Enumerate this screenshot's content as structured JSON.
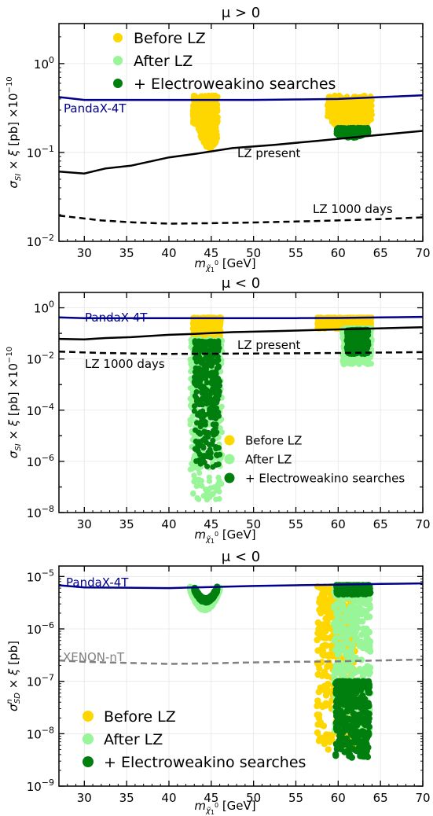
{
  "chart_data": [
    {
      "type": "scatter",
      "title": "μ > 0",
      "xlabel": "m_χ̃₁⁰ [GeV]",
      "ylabel": "σ_SI × ξ [pb] ×10⁻¹⁰",
      "xlim": [
        27,
        70
      ],
      "ylim_log10": [
        -2,
        0.45
      ],
      "log_y": true,
      "grid": true,
      "x_ticks": [
        "30",
        "35",
        "40",
        "45",
        "50",
        "55",
        "60",
        "65",
        "70"
      ],
      "y_ticks": [
        "10⁻²",
        "10⁻¹",
        "10⁰"
      ],
      "legend_position": "top-left",
      "legend": [
        "Before LZ",
        "After LZ",
        "+ Electroweakino searches"
      ],
      "colors": {
        "before": "#FFD700",
        "after": "#98F598",
        "ew": "#007F0E",
        "panda": "#00008B",
        "lz": "#000000"
      },
      "lines": [
        {
          "name": "PandaX-4T",
          "style": "solid",
          "color": "#00008B",
          "x": [
            27,
            30,
            35,
            40,
            45,
            50,
            55,
            60,
            65,
            70
          ],
          "y": [
            0.42,
            0.39,
            0.39,
            0.39,
            0.39,
            0.39,
            0.395,
            0.4,
            0.42,
            0.44
          ]
        },
        {
          "name": "LZ present",
          "style": "solid",
          "color": "#000000",
          "x": [
            27,
            30,
            32.5,
            35.5,
            40,
            43,
            47.5,
            52.5,
            57.5,
            62.5,
            70
          ],
          "y": [
            0.061,
            0.058,
            0.066,
            0.071,
            0.088,
            0.096,
            0.112,
            0.122,
            0.135,
            0.15,
            0.175
          ]
        },
        {
          "name": "LZ 1000 days",
          "style": "dashed",
          "color": "#000000",
          "x": [
            27,
            32,
            36,
            40,
            45,
            50,
            55,
            60,
            65,
            70
          ],
          "y": [
            0.0195,
            0.0172,
            0.0163,
            0.0158,
            0.016,
            0.0163,
            0.0167,
            0.0172,
            0.0178,
            0.0186
          ]
        }
      ],
      "regions": [
        {
          "series": "Before LZ",
          "x": [
            42.8,
            45.8
          ],
          "y_top": 0.44,
          "y_min": 0.11,
          "x_min_at": 44.8
        },
        {
          "series": "Before LZ",
          "x": [
            58.7,
            64.0
          ],
          "y_top": 0.44,
          "y_min": 0.16,
          "x_min_at": 61.5
        },
        {
          "series": "+ Electroweakino searches",
          "x": [
            59.8,
            63.6
          ],
          "y_top": 0.19,
          "y_min": 0.145,
          "x_min_at": 61.5
        }
      ]
    },
    {
      "type": "scatter",
      "title": "μ < 0",
      "xlabel": "m_χ̃₁⁰ [GeV]",
      "ylabel": "σ_SI × ξ [pb] ×10⁻¹⁰",
      "xlim": [
        27,
        70
      ],
      "ylim_log10": [
        -8,
        0.6
      ],
      "log_y": true,
      "grid": true,
      "x_ticks": [
        "30",
        "35",
        "40",
        "45",
        "50",
        "55",
        "60",
        "65",
        "70"
      ],
      "y_ticks": [
        "10⁻⁸",
        "10⁻⁶",
        "10⁻⁴",
        "10⁻²",
        "10⁰"
      ],
      "legend_position": "lower-right",
      "legend": [
        "Before LZ",
        "After LZ",
        "+ Electroweakino searches"
      ],
      "lines": [
        {
          "name": "PandaX-4T",
          "style": "solid",
          "color": "#00008B",
          "x": [
            27,
            30,
            35,
            40,
            45,
            50,
            55,
            60,
            65,
            70
          ],
          "y": [
            0.42,
            0.39,
            0.39,
            0.39,
            0.39,
            0.39,
            0.395,
            0.4,
            0.42,
            0.44
          ]
        },
        {
          "name": "LZ present",
          "style": "solid",
          "color": "#000000",
          "x": [
            27,
            30,
            32.5,
            35.5,
            40,
            43,
            47.5,
            52.5,
            57.5,
            62.5,
            70
          ],
          "y": [
            0.061,
            0.058,
            0.066,
            0.071,
            0.088,
            0.096,
            0.112,
            0.122,
            0.135,
            0.15,
            0.175
          ]
        },
        {
          "name": "LZ 1000 days",
          "style": "dashed",
          "color": "#000000",
          "x": [
            27,
            32,
            36,
            40,
            45,
            50,
            55,
            60,
            65,
            70
          ],
          "y": [
            0.0195,
            0.0172,
            0.0163,
            0.0158,
            0.016,
            0.0163,
            0.0167,
            0.0172,
            0.0178,
            0.0186
          ]
        }
      ],
      "regions": [
        {
          "series": "Before LZ",
          "x": [
            42.8,
            46.2
          ],
          "y_top": 0.42,
          "y_bottom": 0.06
        },
        {
          "series": "After LZ",
          "x": [
            42.5,
            46.3
          ],
          "y_top": 0.06,
          "y_bottom": 3e-08
        },
        {
          "series": "+ Electroweakino searches",
          "x": [
            43.0,
            46.0
          ],
          "y_top": 0.05,
          "y_bottom": 6e-07
        },
        {
          "series": "Before LZ",
          "x": [
            57.5,
            64.0
          ],
          "y_top": 0.42,
          "y_bottom": 0.15
        },
        {
          "series": "After LZ",
          "x": [
            60.5,
            64.0
          ],
          "y_top": 0.16,
          "y_bottom": 0.006
        },
        {
          "series": "+ Electroweakino searches",
          "x": [
            61.0,
            63.6
          ],
          "y_top": 0.14,
          "y_bottom": 0.015
        }
      ]
    },
    {
      "type": "scatter",
      "title": "μ < 0",
      "xlabel": "m_χ̃₁⁰ [GeV]",
      "ylabel": "σⁿ_SD × ξ [pb]",
      "xlim": [
        27,
        70
      ],
      "ylim_log10": [
        -9,
        -4.8
      ],
      "log_y": true,
      "grid": true,
      "x_ticks": [
        "30",
        "35",
        "40",
        "45",
        "50",
        "55",
        "60",
        "65",
        "70"
      ],
      "y_ticks": [
        "10⁻⁹",
        "10⁻⁸",
        "10⁻⁷",
        "10⁻⁶",
        "10⁻⁵"
      ],
      "legend_position": "lower-left",
      "legend": [
        "Before LZ",
        "After LZ",
        "+ Electroweakino searches"
      ],
      "lines": [
        {
          "name": "PandaX-4T",
          "style": "solid",
          "color": "#00008B",
          "x": [
            27,
            30,
            35,
            40,
            45,
            50,
            55,
            60,
            65,
            70
          ],
          "y": [
            6.8e-06,
            6.2e-06,
            6.1e-06,
            6e-06,
            6.3e-06,
            6.6e-06,
            6.8e-06,
            7e-06,
            7.2e-06,
            7.4e-06
          ]
        },
        {
          "name": "XENON-nT",
          "style": "dashed",
          "color": "#808080",
          "x": [
            27,
            30,
            35,
            40,
            45,
            50,
            55,
            60,
            65,
            70
          ],
          "y": [
            2.5e-07,
            2.35e-07,
            2.25e-07,
            2.15e-07,
            2.2e-07,
            2.3e-07,
            2.35e-07,
            2.4e-07,
            2.5e-07,
            2.6e-07
          ]
        }
      ],
      "regions": [
        {
          "series": "Before LZ",
          "x": [
            57.5,
            62.0
          ],
          "y_top": 6.5e-06,
          "y_bottom": 5e-09
        },
        {
          "series": "After LZ",
          "x": [
            59.5,
            63.8
          ],
          "y_top": 6.5e-06,
          "y_bottom": 1e-08
        },
        {
          "series": "+ Electroweakino searches",
          "x": [
            59.7,
            63.7
          ],
          "y_top": 1e-07,
          "y_bottom": 3.5e-09
        },
        {
          "series": "+ Electroweakino searches",
          "x": [
            59.8,
            63.8
          ],
          "y_top": 6.8e-06,
          "y_bottom": 4.5e-06
        },
        {
          "series": "After LZ",
          "x": [
            42.5,
            46.0
          ],
          "y_top": 6e-06,
          "y_bottom": 2.5e-06,
          "shape": "arc"
        },
        {
          "series": "+ Electroweakino searches",
          "x": [
            43.0,
            45.7
          ],
          "y_top": 5.8e-06,
          "y_bottom": 3.5e-06,
          "shape": "arc"
        }
      ]
    }
  ],
  "annotations": {
    "p1": {
      "panda": "PandaX-4T",
      "lz": "LZ present",
      "lz1000": "LZ 1000 days"
    },
    "p2": {
      "panda": "PandaX-4T",
      "lz": "LZ present",
      "lz1000": "LZ 1000 days"
    },
    "p3": {
      "panda": "PandaX-4T",
      "xenon": "XENON-nT"
    }
  }
}
